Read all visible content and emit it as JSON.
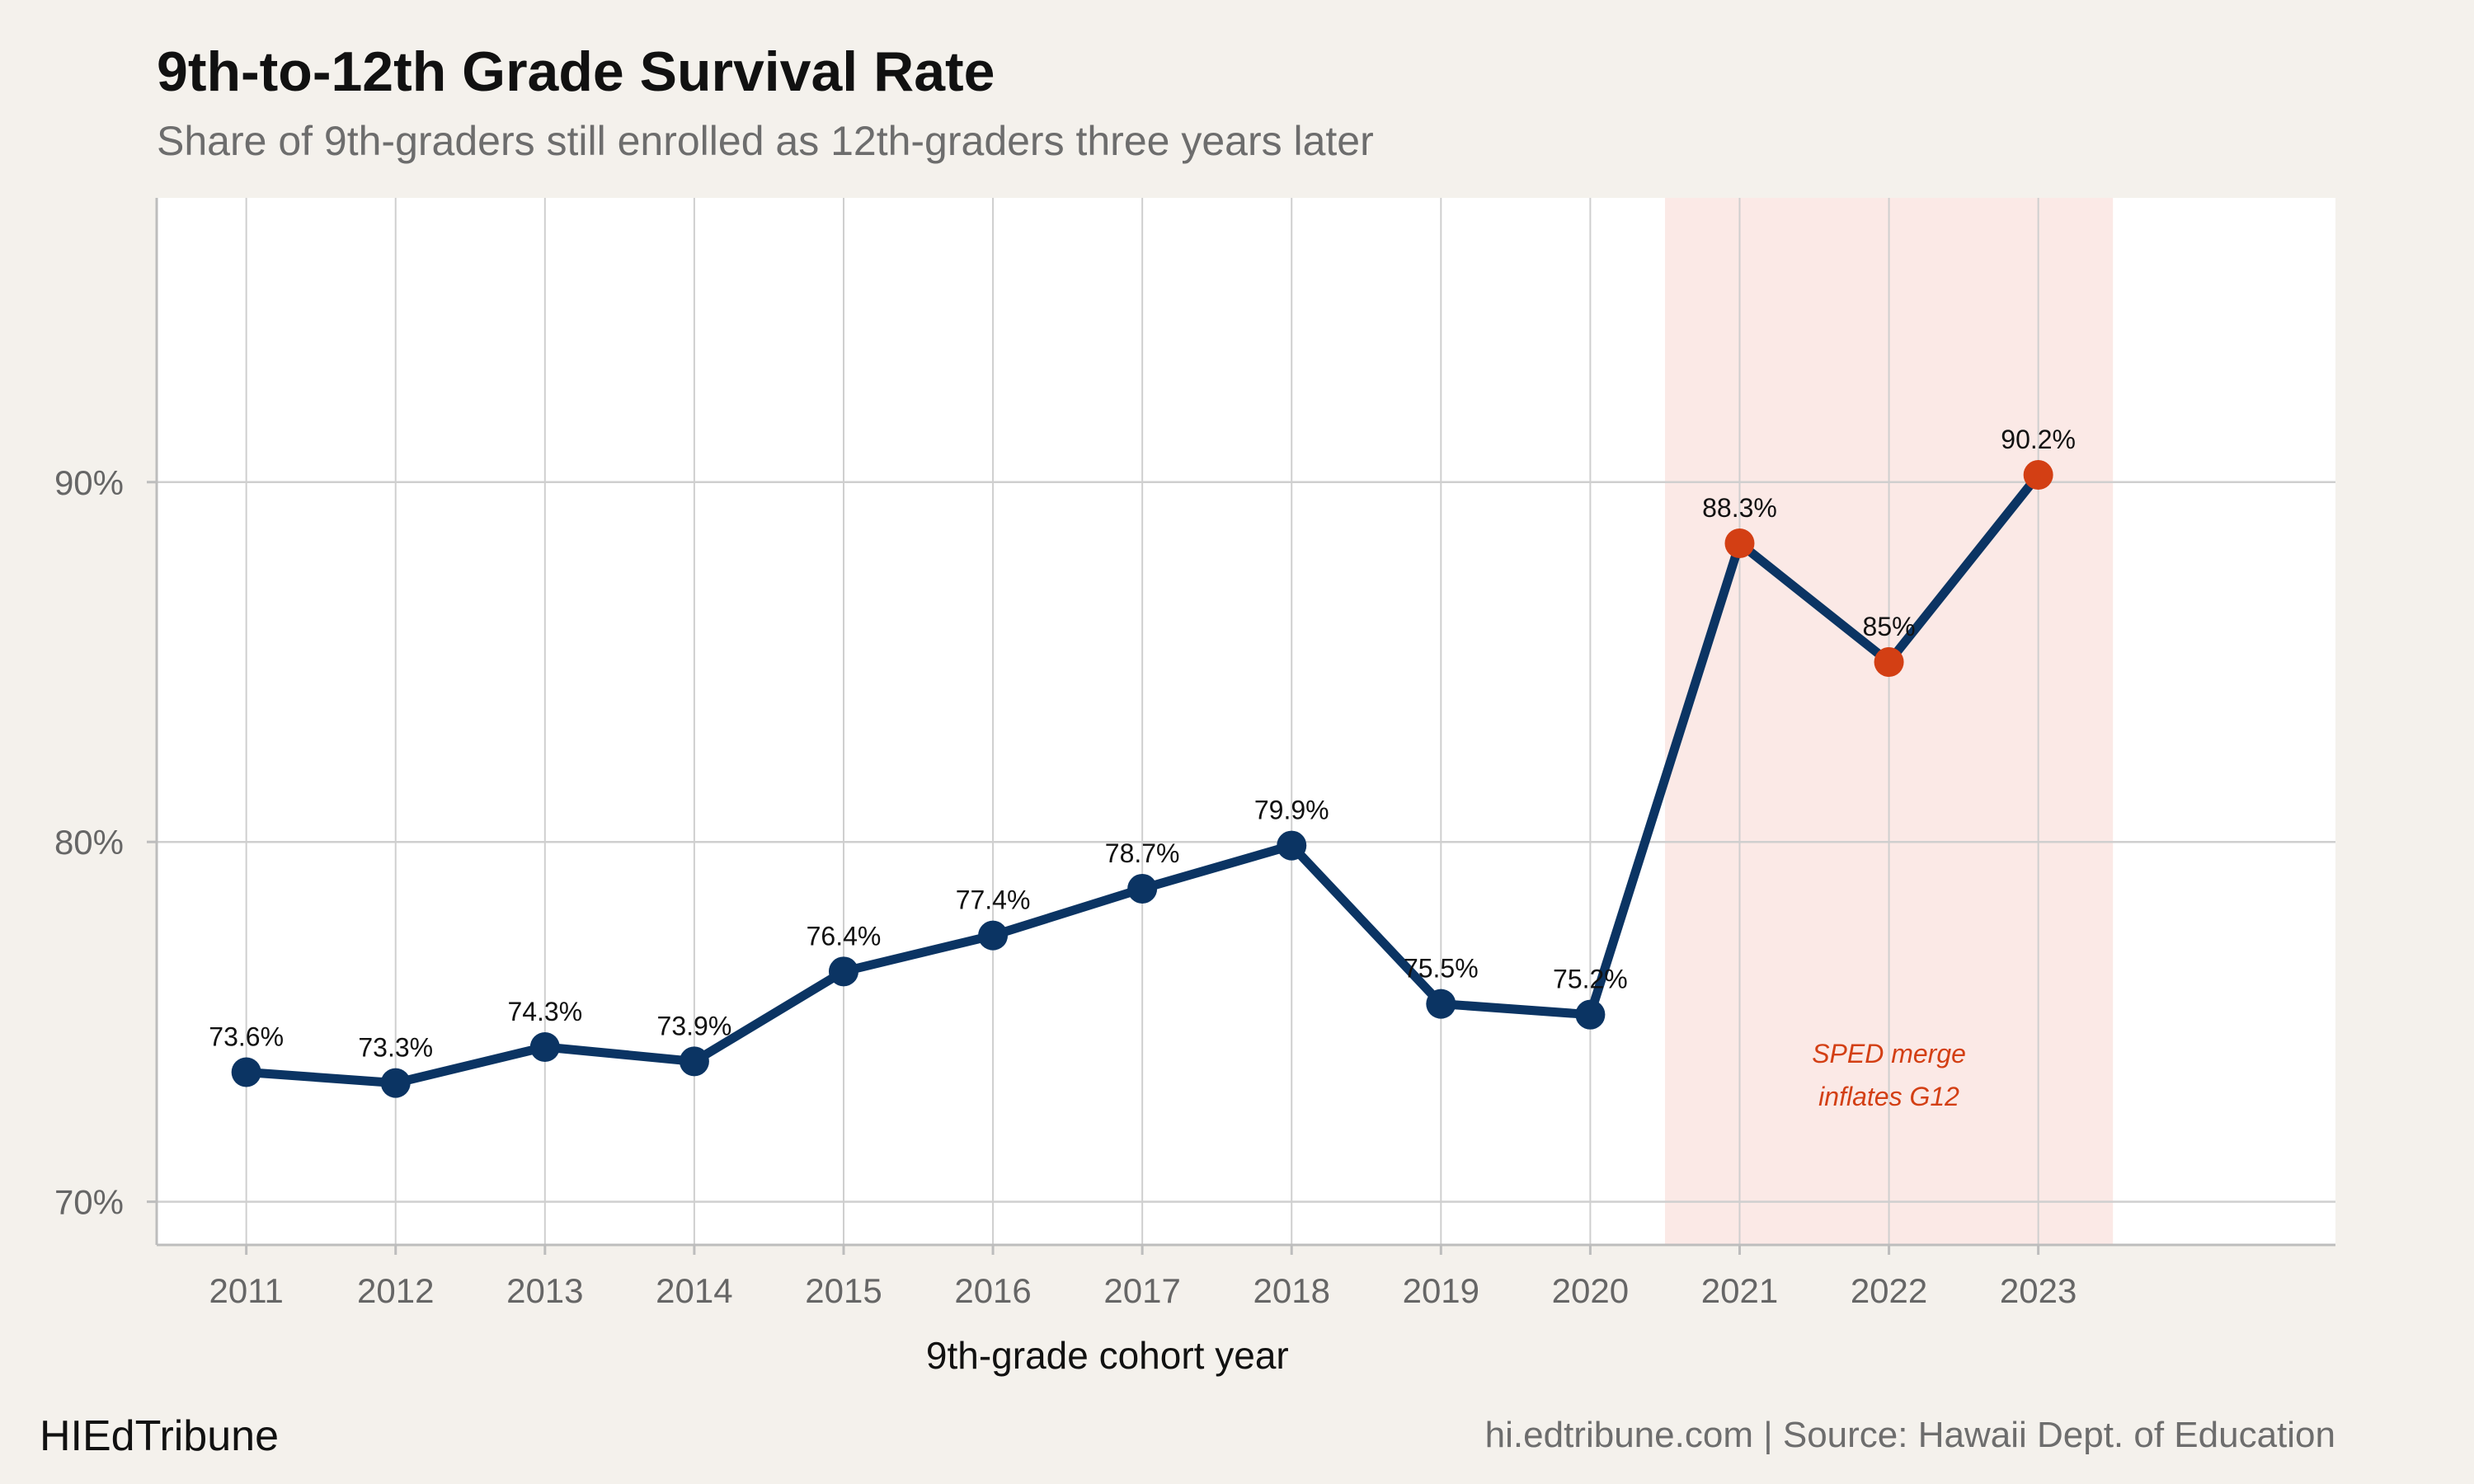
{
  "chart_data": {
    "type": "line",
    "title": "9th-to-12th Grade Survival Rate",
    "subtitle": "Share of 9th-graders still enrolled as 12th-graders three years later",
    "xlabel": "9th-grade cohort year",
    "ylabel": "",
    "x": [
      2011,
      2012,
      2013,
      2014,
      2015,
      2016,
      2017,
      2018,
      2019,
      2020,
      2021,
      2022,
      2023
    ],
    "series": [
      {
        "values": [
          73.6,
          73.3,
          74.3,
          73.9,
          76.4,
          77.4,
          78.7,
          79.9,
          75.5,
          75.2,
          88.3,
          85.0,
          90.2
        ],
        "labels": [
          "73.6%",
          "73.3%",
          "74.3%",
          "73.9%",
          "76.4%",
          "77.4%",
          "78.7%",
          "79.9%",
          "75.5%",
          "75.2%",
          "88.3%",
          "85%",
          "90.2%"
        ],
        "highlighted_from": 2021
      }
    ],
    "ylim": [
      68.8,
      97.9
    ],
    "xlim": [
      2010.4,
      2024.99
    ],
    "y_ticks": [
      70,
      80,
      90
    ],
    "y_tick_labels": [
      "70%",
      "80%",
      "90%"
    ],
    "x_tick_labels": [
      "2011",
      "2012",
      "2013",
      "2014",
      "2015",
      "2016",
      "2017",
      "2018",
      "2019",
      "2020",
      "2021",
      "2022",
      "2023"
    ],
    "shaded_region": {
      "x_start": 2020.5,
      "x_end": 2023.5
    },
    "annotation": {
      "lines": [
        "SPED merge",
        "inflates G12"
      ],
      "x": 2022,
      "y": 73.5
    },
    "grid": true,
    "legend": "none",
    "colors": {
      "line": "#0b3463",
      "point_normal": "#0b3463",
      "point_highlight": "#d33f14",
      "shade": "#fbe9e6",
      "annotation": "#d33f14",
      "grid": "#cfcfcf",
      "panel": "#ffffff",
      "background": "#f4f1ec"
    }
  },
  "branding": "HIEdTribune",
  "footer": "hi.edtribune.com | Source: Hawaii Dept. of Education"
}
